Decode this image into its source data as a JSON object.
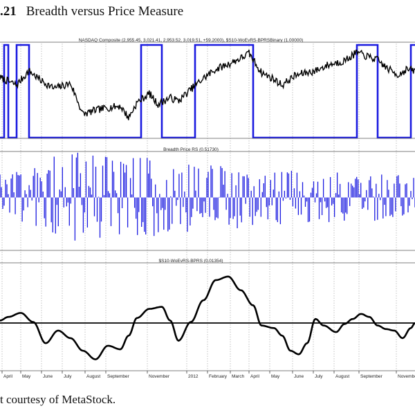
{
  "figure": {
    "number": ".21",
    "title": "Breadth versus Price Measure",
    "caption": "t courtesy of MetaStock."
  },
  "colors": {
    "price": "#000000",
    "binary": "#1a1ae0",
    "bars": "#1a1ae0",
    "oscillator": "#000000",
    "grid": "#9a9a9a",
    "frame": "#555555"
  },
  "x_labels": [
    "April",
    "May",
    "June",
    "July",
    "August",
    "September",
    "November",
    "2012",
    "February",
    "March",
    "April",
    "May",
    "June",
    "July",
    "August",
    "September",
    "November"
  ],
  "chart_data": [
    {
      "type": "line",
      "title": "NASDAQ Composite (2,955.45, 3,021.41, 2,953.52, 3,019.51, +59.2000), $S10-WoEvRS-BPRSBinary (1.00000)",
      "series": [
        {
          "name": "NASDAQ Composite",
          "anchors": [
            [
              0,
              0.66
            ],
            [
              0.04,
              0.57
            ],
            [
              0.07,
              0.74
            ],
            [
              0.1,
              0.62
            ],
            [
              0.13,
              0.53
            ],
            [
              0.17,
              0.59
            ],
            [
              0.2,
              0.22
            ],
            [
              0.23,
              0.27
            ],
            [
              0.26,
              0.3
            ],
            [
              0.29,
              0.32
            ],
            [
              0.31,
              0.18
            ],
            [
              0.33,
              0.36
            ],
            [
              0.36,
              0.47
            ],
            [
              0.38,
              0.34
            ],
            [
              0.41,
              0.42
            ],
            [
              0.43,
              0.38
            ],
            [
              0.46,
              0.52
            ],
            [
              0.49,
              0.65
            ],
            [
              0.52,
              0.76
            ],
            [
              0.55,
              0.82
            ],
            [
              0.58,
              0.89
            ],
            [
              0.6,
              0.95
            ],
            [
              0.63,
              0.72
            ],
            [
              0.66,
              0.64
            ],
            [
              0.68,
              0.57
            ],
            [
              0.71,
              0.68
            ],
            [
              0.73,
              0.71
            ],
            [
              0.76,
              0.74
            ],
            [
              0.79,
              0.81
            ],
            [
              0.83,
              0.86
            ],
            [
              0.86,
              0.96
            ],
            [
              0.88,
              0.92
            ],
            [
              0.91,
              0.87
            ],
            [
              0.93,
              0.78
            ],
            [
              0.96,
              0.69
            ],
            [
              0.98,
              0.76
            ],
            [
              1,
              0.74
            ]
          ]
        },
        {
          "name": "$S10-WoEvRS-BPRSBinary",
          "steps": [
            [
              0,
              0
            ],
            [
              0.01,
              1
            ],
            [
              0.02,
              0
            ],
            [
              0.04,
              1
            ],
            [
              0.07,
              0
            ],
            [
              0.34,
              1
            ],
            [
              0.39,
              0
            ],
            [
              0.47,
              1
            ],
            [
              0.61,
              0
            ],
            [
              0.86,
              1
            ],
            [
              0.91,
              0
            ],
            [
              0.99,
              1
            ]
          ]
        }
      ]
    },
    {
      "type": "bar",
      "title": "Breadth Price RS (0.51730)",
      "seed": 17,
      "count": 300,
      "amplitude_profile": [
        [
          0,
          0.55
        ],
        [
          0.18,
          0.95
        ],
        [
          0.28,
          0.85
        ],
        [
          0.4,
          0.8
        ],
        [
          0.55,
          0.65
        ],
        [
          0.7,
          0.55
        ],
        [
          0.85,
          0.5
        ],
        [
          1,
          0.45
        ]
      ]
    },
    {
      "type": "line",
      "title": "$S10-WoEvRS-BPRS (0.01354)",
      "zero_line": true,
      "series": [
        {
          "name": "$S10-WoEvRS-BPRS",
          "anchors": [
            [
              0,
              0.05
            ],
            [
              0.02,
              0.12
            ],
            [
              0.05,
              0.2
            ],
            [
              0.08,
              0.02
            ],
            [
              0.11,
              -0.4
            ],
            [
              0.14,
              -0.15
            ],
            [
              0.17,
              -0.3
            ],
            [
              0.2,
              -0.55
            ],
            [
              0.23,
              -0.72
            ],
            [
              0.26,
              -0.45
            ],
            [
              0.29,
              -0.52
            ],
            [
              0.31,
              -0.25
            ],
            [
              0.33,
              0.1
            ],
            [
              0.36,
              0.28
            ],
            [
              0.39,
              0.32
            ],
            [
              0.41,
              0.05
            ],
            [
              0.43,
              -0.35
            ],
            [
              0.46,
              0.02
            ],
            [
              0.49,
              0.45
            ],
            [
              0.52,
              0.85
            ],
            [
              0.55,
              0.92
            ],
            [
              0.58,
              0.65
            ],
            [
              0.61,
              0.35
            ],
            [
              0.63,
              -0.05
            ],
            [
              0.66,
              -0.1
            ],
            [
              0.68,
              -0.25
            ],
            [
              0.7,
              -0.55
            ],
            [
              0.72,
              -0.62
            ],
            [
              0.74,
              -0.4
            ],
            [
              0.76,
              0.08
            ],
            [
              0.78,
              -0.05
            ],
            [
              0.81,
              -0.18
            ],
            [
              0.83,
              -0.02
            ],
            [
              0.85,
              0.08
            ],
            [
              0.87,
              0.18
            ],
            [
              0.89,
              0.12
            ],
            [
              0.91,
              -0.05
            ],
            [
              0.93,
              -0.12
            ],
            [
              0.95,
              -0.15
            ],
            [
              0.97,
              -0.3
            ],
            [
              0.99,
              -0.1
            ],
            [
              1,
              0.0
            ]
          ]
        }
      ]
    }
  ]
}
